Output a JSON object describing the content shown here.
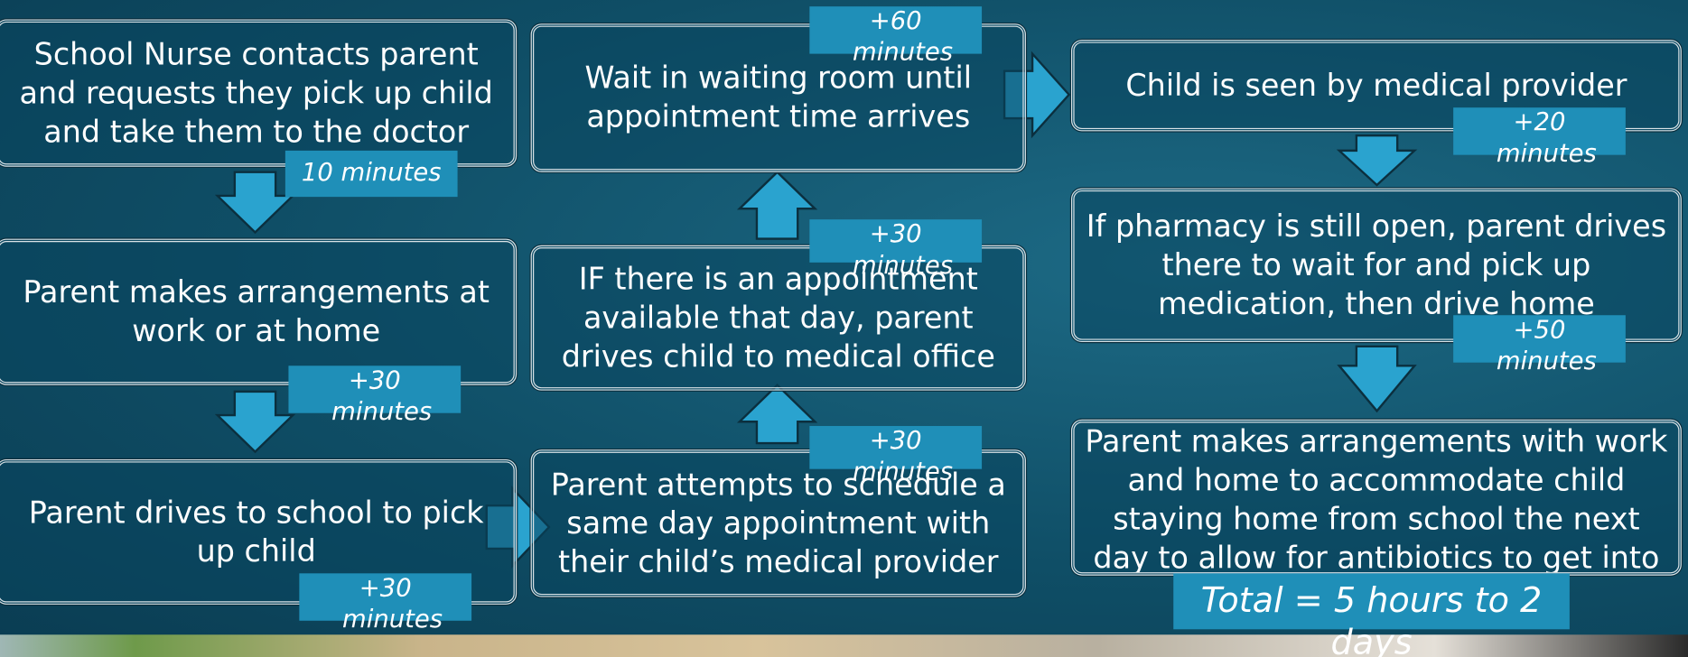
{
  "steps": [
    "School Nurse contacts parent and requests they pick up child and take them to the doctor",
    "Parent makes arrangements at work or at home",
    "Parent drives to school to pick up child",
    "Wait in waiting room until appointment time arrives",
    "IF there is an appointment available that day, parent drives child to medical office",
    "Parent attempts to schedule a same day appointment with their child’s medical provider",
    "Child is seen by medical provider",
    "If pharmacy is still open, parent drives there to wait for and pick up medication, then drive home",
    "Parent makes arrangements with work and home to accommodate child staying home from school the next day to allow for antibiotics to get into system"
  ],
  "durations": [
    "10 minutes",
    "+30 minutes",
    "+30 minutes",
    "+60 minutes",
    "+30 minutes",
    "+30 minutes",
    "+20 minutes",
    "+50 minutes"
  ],
  "total": "Total = 5 hours to 2 days"
}
